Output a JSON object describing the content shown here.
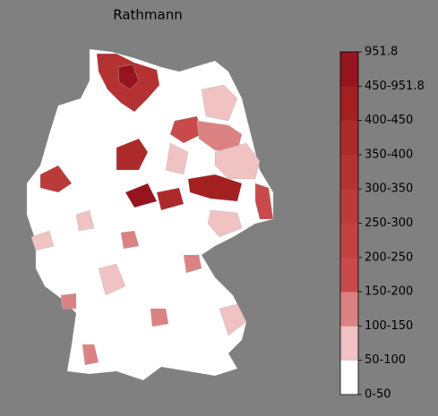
{
  "title": "Rathmann",
  "colorbar": {
    "ticks": [
      "0-50",
      "50-100",
      "100-150",
      "150-200",
      "200-250",
      "250-300",
      "300-350",
      "350-400",
      "400-450",
      "450-951.8",
      "951.8"
    ],
    "colors": [
      "#ffffff",
      "#f0c2c2",
      "#dc8282",
      "#c94a4a",
      "#c24242",
      "#bb3a3a",
      "#b43232",
      "#ad2a2a",
      "#a42020",
      "#96141f"
    ]
  }
}
